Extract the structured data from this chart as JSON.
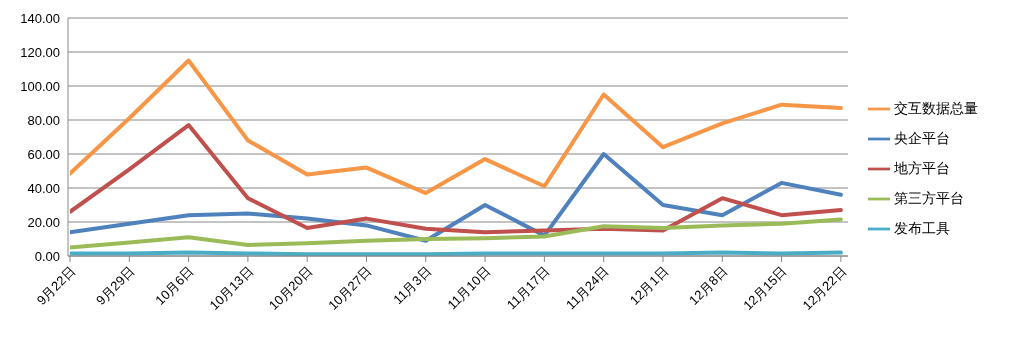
{
  "chart_data": {
    "type": "line",
    "categories": [
      "9月22日",
      "9月29日",
      "10月6日",
      "10月13日",
      "10月20日",
      "10月27日",
      "11月3日",
      "11月10日",
      "11月17日",
      "11月24日",
      "12月1日",
      "12月8日",
      "12月15日",
      "12月22日"
    ],
    "series": [
      {
        "name": "交互数据总量",
        "color": "#f79646",
        "values": [
          48.5,
          81,
          115,
          68,
          48,
          52,
          37,
          57,
          41,
          95,
          64,
          78,
          89,
          87
        ]
      },
      {
        "name": "央企平台",
        "color": "#4f81bd",
        "values": [
          14,
          19,
          24,
          25,
          22,
          18,
          9,
          30,
          12,
          60,
          30,
          24,
          43,
          36
        ]
      },
      {
        "name": "地方平台",
        "color": "#c0504d",
        "values": [
          26,
          51,
          77,
          34,
          16.5,
          22,
          16,
          14,
          15,
          16,
          15,
          34,
          24,
          27
        ]
      },
      {
        "name": "第三方平台",
        "color": "#9bbb59",
        "values": [
          5,
          8,
          11,
          6.5,
          7.5,
          9,
          10,
          10.5,
          11.5,
          17.5,
          16.5,
          18,
          19,
          21.5
        ]
      },
      {
        "name": "发布工具",
        "color": "#4bacc6",
        "values": [
          1.5,
          1.5,
          2,
          1.5,
          1,
          1,
          1,
          1.5,
          1.5,
          1.5,
          1.5,
          2,
          1.5,
          2
        ]
      }
    ],
    "ylim": [
      0,
      140
    ],
    "yticks": [
      {
        "value": 0,
        "label": "0.00"
      },
      {
        "value": 20,
        "label": "20.00"
      },
      {
        "value": 40,
        "label": "40.00"
      },
      {
        "value": 60,
        "label": "60.00"
      },
      {
        "value": 80,
        "label": "80.00"
      },
      {
        "value": 100,
        "label": "100.00"
      },
      {
        "value": 120,
        "label": "120.00"
      },
      {
        "value": 140,
        "label": "140.00"
      }
    ],
    "grid": "y",
    "legend": "right",
    "marker": "none",
    "line_style": "solid"
  }
}
